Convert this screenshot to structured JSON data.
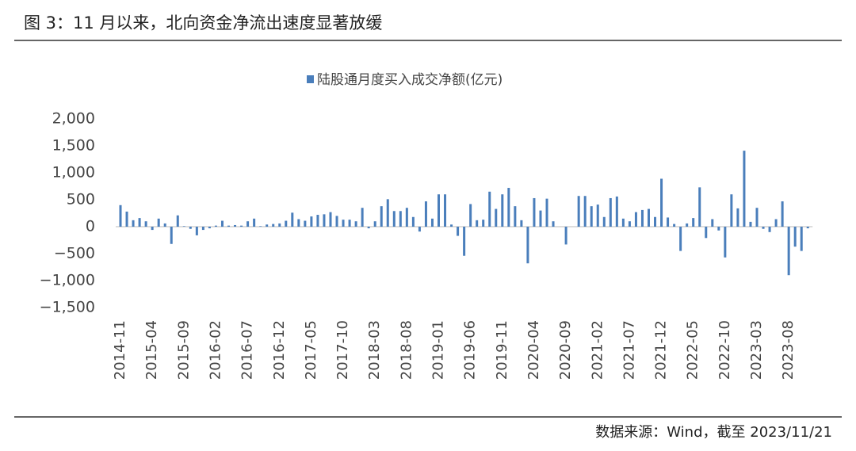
{
  "header": {
    "title": "图 3：11 月以来，北向资金净流出速度显著放缓"
  },
  "footer": {
    "source": "数据来源：Wind，截至 2023/11/21"
  },
  "chart_data": {
    "type": "bar",
    "color": "#4a7ebb",
    "series": [
      {
        "name": "陆股通月度买入成交净额(亿元)",
        "color": "#4a7ebb",
        "values": [
          400,
          280,
          120,
          160,
          100,
          -60,
          150,
          60,
          -320,
          210,
          10,
          -40,
          -160,
          -60,
          -30,
          20,
          110,
          20,
          30,
          20,
          100,
          150,
          10,
          40,
          50,
          60,
          110,
          260,
          140,
          110,
          190,
          220,
          230,
          270,
          200,
          130,
          130,
          100,
          350,
          -30,
          100,
          380,
          510,
          290,
          290,
          350,
          180,
          -90,
          470,
          150,
          600,
          600,
          40,
          -170,
          -540,
          420,
          120,
          130,
          650,
          330,
          600,
          720,
          380,
          120,
          -680,
          530,
          300,
          520,
          100,
          0,
          -330,
          0,
          570,
          570,
          380,
          410,
          180,
          530,
          560,
          150,
          100,
          270,
          310,
          330,
          180,
          890,
          170,
          50,
          -450,
          60,
          160,
          730,
          -210,
          140,
          -70,
          -570,
          600,
          340,
          1410,
          90,
          350,
          -40,
          -100,
          140,
          470,
          -900,
          -370,
          -450,
          -30
        ]
      }
    ],
    "categories": [
      "2014-11",
      null,
      null,
      null,
      null,
      "2015-04",
      null,
      null,
      null,
      null,
      "2015-09",
      null,
      null,
      null,
      null,
      "2016-02",
      null,
      null,
      null,
      null,
      "2016-07",
      null,
      null,
      null,
      null,
      "2016-12",
      null,
      null,
      null,
      null,
      "2017-05",
      null,
      null,
      null,
      null,
      "2017-10",
      null,
      null,
      null,
      null,
      "2018-03",
      null,
      null,
      null,
      null,
      "2018-08",
      null,
      null,
      null,
      null,
      "2019-01",
      null,
      null,
      null,
      null,
      "2019-06",
      null,
      null,
      null,
      null,
      "2019-11",
      null,
      null,
      null,
      null,
      "2020-04",
      null,
      null,
      null,
      null,
      "2020-09",
      null,
      null,
      null,
      null,
      "2021-02",
      null,
      null,
      null,
      null,
      "2021-07",
      null,
      null,
      null,
      null,
      "2021-12",
      null,
      null,
      null,
      null,
      "2022-05",
      null,
      null,
      null,
      null,
      "2022-10",
      null,
      null,
      null,
      null,
      "2023-03",
      null,
      null,
      null,
      null,
      "2023-08",
      null,
      null,
      null
    ],
    "ylim": [
      -1500,
      2000
    ],
    "yticks": [
      {
        "value": 2000,
        "label": "2,000"
      },
      {
        "value": 1500,
        "label": "1,500"
      },
      {
        "value": 1000,
        "label": "1,000"
      },
      500,
      0,
      {
        "value": -500,
        "label": "−500"
      },
      {
        "value": -1000,
        "label": "−1,000"
      },
      {
        "value": -1500,
        "label": "−1,500"
      }
    ],
    "grid": false
  }
}
